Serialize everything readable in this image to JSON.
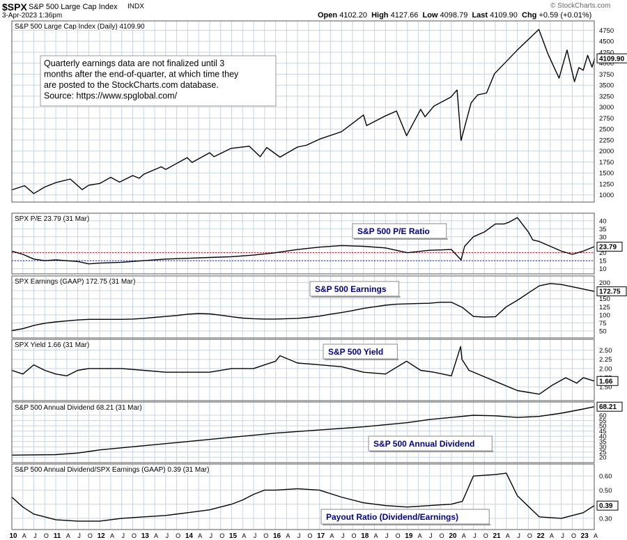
{
  "header": {
    "symbol": "$SPX",
    "name": "S&P 500 Large Cap Index",
    "exchange": "INDX",
    "date": "3-Apr-2023 1:36pm",
    "open_label": "Open",
    "open": "4102.20",
    "high_label": "High",
    "high": "4127.66",
    "low_label": "Low",
    "low": "4098.79",
    "last_label": "Last",
    "last": "4109.90",
    "chg_label": "Chg",
    "chg": "+0.59 (+0.01%)",
    "watermark": "© StockCharts.com"
  },
  "annotation": {
    "lines": [
      "Quarterly earnings data are not finalized until 3",
      "months after the end-of-quarter, at which time they",
      "are posted to the StockCharts.com database.",
      "Source: https://www.spglobal.com/"
    ]
  },
  "chart_data": {
    "type": "line",
    "x_axis": {
      "range": [
        "2010-01",
        "2023-04"
      ],
      "tick_labels": [
        "10",
        "A",
        "J",
        "O",
        "11",
        "A",
        "J",
        "O",
        "12",
        "A",
        "J",
        "O",
        "13",
        "A",
        "J",
        "O",
        "14",
        "A",
        "J",
        "O",
        "15",
        "A",
        "J",
        "O",
        "16",
        "A",
        "J",
        "O",
        "17",
        "A",
        "J",
        "O",
        "18",
        "A",
        "J",
        "O",
        "19",
        "A",
        "J",
        "O",
        "20",
        "A",
        "J",
        "O",
        "21",
        "A",
        "J",
        "O",
        "22",
        "A",
        "J",
        "O",
        "23",
        "A"
      ]
    },
    "colors": {
      "line": "#000000",
      "grid": "#c8d4e4",
      "frame": "#555555",
      "label_title": "#00008b",
      "ref_red": "#d40000",
      "ref_blue": "#1c1c9c"
    },
    "panels": [
      {
        "id": "price",
        "legend": "S&P 500 Large Cap Index (Daily) 4109.90",
        "last_value": "4109.90",
        "yaxis_ticks": [
          "4750",
          "4500",
          "4250",
          "4000",
          "3750",
          "3500",
          "3250",
          "3000",
          "2750",
          "2500",
          "2250",
          "2000",
          "1750",
          "1500",
          "1250",
          "1000"
        ],
        "ylim": [
          900,
          4900
        ],
        "x": [
          2010.0,
          2010.29,
          2010.5,
          2010.75,
          2011.0,
          2011.33,
          2011.6,
          2011.75,
          2012.0,
          2012.25,
          2012.45,
          2012.75,
          2012.9,
          2013.0,
          2013.4,
          2013.5,
          2013.99,
          2014.1,
          2014.5,
          2014.6,
          2014.99,
          2015.4,
          2015.65,
          2015.8,
          2016.1,
          2016.5,
          2016.7,
          2017.0,
          2017.5,
          2018.0,
          2018.07,
          2018.5,
          2018.75,
          2018.98,
          2019.3,
          2019.4,
          2019.6,
          2019.99,
          2020.13,
          2020.22,
          2020.45,
          2020.6,
          2020.8,
          2020.98,
          2021.5,
          2021.99,
          2022.2,
          2022.45,
          2022.63,
          2022.8,
          2022.9,
          2023.0,
          2023.1,
          2023.2,
          2023.26
        ],
        "values": [
          1115,
          1210,
          1030,
          1180,
          1280,
          1360,
          1120,
          1220,
          1260,
          1400,
          1290,
          1440,
          1380,
          1470,
          1640,
          1580,
          1850,
          1740,
          1960,
          1870,
          2060,
          2110,
          1870,
          2080,
          1860,
          2090,
          2130,
          2270,
          2440,
          2820,
          2580,
          2800,
          2910,
          2350,
          2950,
          2780,
          3020,
          3230,
          3390,
          2240,
          3100,
          3280,
          3320,
          3760,
          4300,
          4770,
          4200,
          3660,
          4300,
          3580,
          3900,
          3840,
          4180,
          3910,
          4110
        ]
      },
      {
        "id": "pe",
        "legend": "SPX P/E 23.79 (31 Mar)",
        "title": "S&P 500 P/E Ratio",
        "last_value": "23.79",
        "yaxis_ticks": [
          "40",
          "35",
          "30",
          "25",
          "20",
          "15",
          "10"
        ],
        "ylim": [
          8.5,
          43
        ],
        "ref_lines": [
          {
            "value": 20,
            "color": "red"
          },
          {
            "value": 15,
            "color": "blue"
          }
        ],
        "x": [
          2010.0,
          2010.25,
          2010.5,
          2010.75,
          2011.0,
          2011.5,
          2011.75,
          2012.0,
          2012.5,
          2013.0,
          2013.5,
          2014.0,
          2014.5,
          2015.0,
          2015.5,
          2016.0,
          2016.5,
          2017.0,
          2017.5,
          2018.0,
          2018.5,
          2019.0,
          2019.5,
          2020.0,
          2020.22,
          2020.3,
          2020.5,
          2020.75,
          2021.0,
          2021.2,
          2021.3,
          2021.5,
          2021.75,
          2021.85,
          2022.0,
          2022.5,
          2022.75,
          2023.0,
          2023.25
        ],
        "values": [
          21,
          19,
          16,
          15,
          15.5,
          14.5,
          13,
          13.5,
          14,
          15,
          16,
          16.5,
          17,
          17.5,
          18.5,
          20,
          22,
          23.5,
          24.5,
          24,
          23,
          20,
          21.5,
          22,
          15.5,
          24,
          30,
          33,
          38,
          38,
          39,
          42,
          33,
          28,
          27,
          21,
          19,
          21,
          23.79
        ]
      },
      {
        "id": "earnings",
        "legend": "SPX Earnings (GAAP) 172.75 (31 Mar)",
        "title": "S&P 500 Earnings",
        "last_value": "172.75",
        "yaxis_ticks": [
          "200",
          "175",
          "150",
          "125",
          "100",
          "75",
          "50"
        ],
        "ylim": [
          37,
          212
        ],
        "x": [
          2010.0,
          2010.25,
          2010.5,
          2010.75,
          2011.0,
          2011.25,
          2011.5,
          2011.75,
          2012.0,
          2012.25,
          2012.5,
          2012.75,
          2013.0,
          2013.25,
          2013.5,
          2013.75,
          2014.0,
          2014.25,
          2014.5,
          2014.75,
          2015.0,
          2015.25,
          2015.5,
          2015.75,
          2016.0,
          2016.25,
          2016.5,
          2016.75,
          2017.0,
          2017.25,
          2017.5,
          2017.75,
          2018.0,
          2018.25,
          2018.5,
          2018.75,
          2019.0,
          2019.25,
          2019.5,
          2019.75,
          2020.0,
          2020.25,
          2020.5,
          2020.75,
          2021.0,
          2021.25,
          2021.5,
          2021.75,
          2022.0,
          2022.25,
          2022.5,
          2022.75,
          2023.0,
          2023.25
        ],
        "values": [
          51,
          57,
          67,
          74,
          78,
          81,
          84,
          86,
          86,
          86,
          86,
          87,
          89,
          92,
          95,
          98,
          102,
          104,
          103,
          99,
          94,
          90,
          88,
          87,
          87,
          88,
          89,
          92,
          96,
          102,
          107,
          113,
          120,
          125,
          130,
          133,
          134,
          135,
          136,
          139,
          139,
          123,
          95,
          93,
          94,
          125,
          145,
          168,
          190,
          197,
          194,
          187,
          180,
          172.75
        ]
      },
      {
        "id": "yield",
        "legend": "SPX Yield 1.66 (31 Mar)",
        "title": "S&P 500 Yield",
        "last_value": "1.66",
        "yaxis_ticks": [
          "2.50",
          "2.25",
          "2.00",
          "1.75",
          "1.50"
        ],
        "ylim": [
          1.2,
          2.72
        ],
        "x": [
          2010.0,
          2010.25,
          2010.5,
          2010.75,
          2011.0,
          2011.25,
          2011.5,
          2011.75,
          2012.0,
          2012.5,
          2013.0,
          2013.5,
          2014.0,
          2014.5,
          2015.0,
          2015.5,
          2016.0,
          2016.1,
          2016.5,
          2017.0,
          2017.5,
          2018.0,
          2018.5,
          2018.98,
          2019.3,
          2019.6,
          2020.0,
          2020.21,
          2020.24,
          2020.4,
          2020.7,
          2021.0,
          2021.5,
          2022.0,
          2022.3,
          2022.6,
          2022.85,
          2023.0,
          2023.25
        ],
        "values": [
          1.95,
          1.85,
          2.1,
          1.95,
          1.85,
          1.8,
          1.95,
          2.0,
          2.0,
          2.0,
          1.95,
          1.9,
          1.9,
          1.9,
          2.0,
          2.0,
          2.2,
          2.35,
          2.15,
          2.1,
          2.05,
          1.9,
          1.85,
          2.2,
          1.95,
          1.9,
          1.8,
          2.6,
          2.25,
          1.95,
          1.8,
          1.65,
          1.4,
          1.3,
          1.55,
          1.75,
          1.6,
          1.75,
          1.66
        ]
      },
      {
        "id": "dividend",
        "legend": "S&P 500 Annual Dividend 68.21 (31 Mar)",
        "title": "S&P 500 Annual Dividend",
        "last_value": "68.21",
        "yaxis_ticks": [
          "60",
          "55",
          "50",
          "45",
          "40",
          "35",
          "30",
          "25",
          "20"
        ],
        "ylim": [
          17.5,
          70
        ],
        "x": [
          2010.0,
          2011.0,
          2011.5,
          2012.0,
          2012.5,
          2013.0,
          2014.0,
          2015.0,
          2016.0,
          2017.0,
          2018.0,
          2019.0,
          2019.5,
          2020.0,
          2020.5,
          2021.0,
          2021.5,
          2022.0,
          2022.5,
          2023.0,
          2023.25
        ],
        "values": [
          22,
          22.5,
          24,
          27,
          29,
          31,
          35,
          39,
          43,
          46,
          49,
          53,
          56,
          58,
          60,
          59.5,
          58,
          59,
          62,
          66,
          68.21
        ]
      },
      {
        "id": "payout",
        "legend": "S&P 500 Annual Dividend/SPX Earnings (GAAP) 0.39 (31 Mar)",
        "title": "Payout Ratio (Dividend/Earnings)",
        "last_value": "0.39",
        "yaxis_ticks": [
          "0.60",
          "0.50",
          "0.40",
          "0.30"
        ],
        "ylim": [
          0.24,
          0.665
        ],
        "x": [
          2010.0,
          2010.25,
          2010.5,
          2010.75,
          2011.0,
          2011.5,
          2012.0,
          2012.5,
          2013.0,
          2013.5,
          2014.0,
          2014.5,
          2015.0,
          2015.25,
          2015.5,
          2015.75,
          2016.0,
          2016.5,
          2017.0,
          2017.5,
          2018.0,
          2018.5,
          2019.0,
          2019.5,
          2020.0,
          2020.25,
          2020.5,
          2021.0,
          2021.25,
          2021.5,
          2022.0,
          2022.5,
          2023.0,
          2023.25
        ],
        "values": [
          0.45,
          0.38,
          0.33,
          0.31,
          0.29,
          0.28,
          0.28,
          0.3,
          0.31,
          0.32,
          0.34,
          0.36,
          0.4,
          0.43,
          0.47,
          0.5,
          0.5,
          0.51,
          0.5,
          0.45,
          0.41,
          0.39,
          0.38,
          0.39,
          0.4,
          0.42,
          0.6,
          0.61,
          0.62,
          0.46,
          0.31,
          0.3,
          0.34,
          0.39
        ]
      }
    ]
  }
}
